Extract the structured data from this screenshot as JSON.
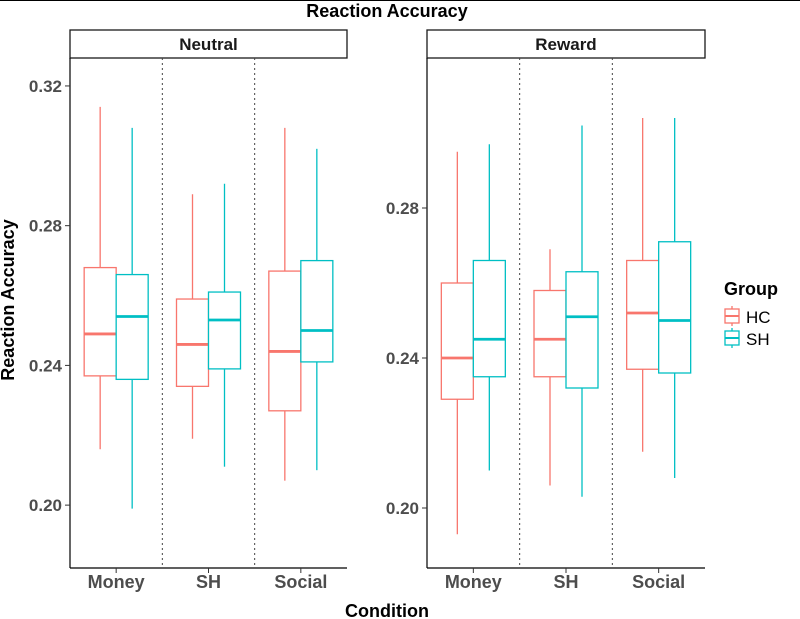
{
  "chart_data": {
    "type": "box",
    "title": "Reaction Accuracy",
    "xlabel": "Condition",
    "ylabel": "Reaction Accuracy",
    "categories": [
      "Money",
      "SH",
      "Social"
    ],
    "legend": {
      "title": "Group",
      "placement": "right",
      "entries": [
        {
          "name": "HC",
          "color": "#F8766D"
        },
        {
          "name": "SH",
          "color": "#00BFC4"
        }
      ]
    },
    "panels": [
      {
        "name": "Neutral",
        "ylim": [
          0.182,
          0.328
        ],
        "yticks": [
          {
            "value": 0.2,
            "label": "0.20"
          },
          {
            "value": 0.24,
            "label": "0.24"
          },
          {
            "value": 0.28,
            "label": "0.28"
          },
          {
            "value": 0.32,
            "label": "0.32"
          }
        ],
        "series": [
          {
            "name": "HC",
            "boxes": [
              {
                "category": "Money",
                "min": 0.216,
                "q1": 0.237,
                "median": 0.249,
                "q3": 0.268,
                "max": 0.314
              },
              {
                "category": "SH",
                "min": 0.219,
                "q1": 0.234,
                "median": 0.246,
                "q3": 0.259,
                "max": 0.289
              },
              {
                "category": "Social",
                "min": 0.207,
                "q1": 0.227,
                "median": 0.244,
                "q3": 0.267,
                "max": 0.308
              }
            ]
          },
          {
            "name": "SH",
            "boxes": [
              {
                "category": "Money",
                "min": 0.199,
                "q1": 0.236,
                "median": 0.254,
                "q3": 0.266,
                "max": 0.308
              },
              {
                "category": "SH",
                "min": 0.211,
                "q1": 0.239,
                "median": 0.253,
                "q3": 0.261,
                "max": 0.292
              },
              {
                "category": "Social",
                "min": 0.21,
                "q1": 0.241,
                "median": 0.25,
                "q3": 0.27,
                "max": 0.302
              }
            ]
          }
        ]
      },
      {
        "name": "Reward",
        "ylim": [
          0.184,
          0.32
        ],
        "yticks": [
          {
            "value": 0.2,
            "label": "0.20"
          },
          {
            "value": 0.24,
            "label": "0.24"
          },
          {
            "value": 0.28,
            "label": "0.28"
          }
        ],
        "series": [
          {
            "name": "HC",
            "boxes": [
              {
                "category": "Money",
                "min": 0.193,
                "q1": 0.229,
                "median": 0.24,
                "q3": 0.26,
                "max": 0.295
              },
              {
                "category": "SH",
                "min": 0.206,
                "q1": 0.235,
                "median": 0.245,
                "q3": 0.258,
                "max": 0.269
              },
              {
                "category": "Social",
                "min": 0.215,
                "q1": 0.237,
                "median": 0.252,
                "q3": 0.266,
                "max": 0.304
              }
            ]
          },
          {
            "name": "SH",
            "boxes": [
              {
                "category": "Money",
                "min": 0.21,
                "q1": 0.235,
                "median": 0.245,
                "q3": 0.266,
                "max": 0.297
              },
              {
                "category": "SH",
                "min": 0.203,
                "q1": 0.232,
                "median": 0.251,
                "q3": 0.263,
                "max": 0.302
              },
              {
                "category": "Social",
                "min": 0.208,
                "q1": 0.236,
                "median": 0.25,
                "q3": 0.271,
                "max": 0.304
              }
            ]
          }
        ]
      }
    ]
  }
}
